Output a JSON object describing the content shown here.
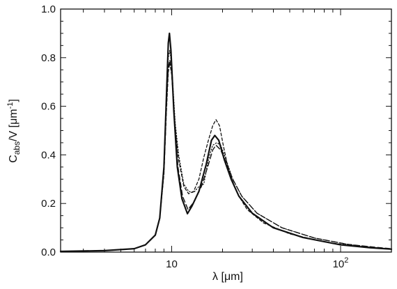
{
  "chart_data": {
    "type": "line",
    "title": "",
    "xlabel": "λ [μm]",
    "ylabel_main": "C",
    "ylabel_sub": "abs",
    "ylabel_tail": "/V  [μm",
    "ylabel_sup": "-1",
    "ylabel_close": "]",
    "xscale": "log",
    "xlim": [
      2.2,
      200
    ],
    "ylim": [
      0,
      1.0
    ],
    "grid": false,
    "x_ticks": [
      {
        "value": 10,
        "base": "10",
        "exp": ""
      },
      {
        "value": 100,
        "base": "10",
        "exp": "2"
      }
    ],
    "y_ticks": [
      {
        "value": 0.0,
        "label": "0.0"
      },
      {
        "value": 0.2,
        "label": "0.2"
      },
      {
        "value": 0.4,
        "label": "0.4"
      },
      {
        "value": 0.6,
        "label": "0.6"
      },
      {
        "value": 0.8,
        "label": "0.8"
      },
      {
        "value": 1.0,
        "label": "1.0"
      }
    ],
    "series": [
      {
        "style": "solid",
        "width": 2.2,
        "points": [
          [
            2.2,
            0.003
          ],
          [
            4,
            0.006
          ],
          [
            6,
            0.014
          ],
          [
            7,
            0.03
          ],
          [
            8,
            0.07
          ],
          [
            8.5,
            0.14
          ],
          [
            9,
            0.35
          ],
          [
            9.3,
            0.63
          ],
          [
            9.55,
            0.86
          ],
          [
            9.7,
            0.9
          ],
          [
            9.9,
            0.83
          ],
          [
            10.3,
            0.58
          ],
          [
            10.8,
            0.35
          ],
          [
            11.5,
            0.22
          ],
          [
            12.4,
            0.158
          ],
          [
            13.2,
            0.19
          ],
          [
            14.5,
            0.25
          ],
          [
            16,
            0.36
          ],
          [
            17.2,
            0.46
          ],
          [
            18,
            0.48
          ],
          [
            19,
            0.46
          ],
          [
            20.5,
            0.38
          ],
          [
            22.5,
            0.3
          ],
          [
            25,
            0.23
          ],
          [
            30,
            0.16
          ],
          [
            40,
            0.1
          ],
          [
            60,
            0.06
          ],
          [
            100,
            0.03
          ],
          [
            150,
            0.018
          ],
          [
            200,
            0.012
          ]
        ]
      },
      {
        "style": "dashed",
        "width": 1.4,
        "points": [
          [
            2.2,
            0.003
          ],
          [
            4,
            0.006
          ],
          [
            6,
            0.014
          ],
          [
            7,
            0.03
          ],
          [
            8,
            0.07
          ],
          [
            8.5,
            0.14
          ],
          [
            9,
            0.33
          ],
          [
            9.3,
            0.59
          ],
          [
            9.55,
            0.76
          ],
          [
            9.75,
            0.79
          ],
          [
            10,
            0.74
          ],
          [
            10.4,
            0.55
          ],
          [
            10.9,
            0.35
          ],
          [
            11.6,
            0.23
          ],
          [
            12.5,
            0.175
          ],
          [
            13.5,
            0.205
          ],
          [
            15,
            0.27
          ],
          [
            16.5,
            0.36
          ],
          [
            17.5,
            0.42
          ],
          [
            18.3,
            0.44
          ],
          [
            19.5,
            0.42
          ],
          [
            21,
            0.37
          ],
          [
            23,
            0.3
          ],
          [
            26,
            0.23
          ],
          [
            32,
            0.16
          ],
          [
            45,
            0.1
          ],
          [
            70,
            0.058
          ],
          [
            110,
            0.032
          ],
          [
            160,
            0.02
          ],
          [
            200,
            0.014
          ]
        ]
      },
      {
        "style": "dotted",
        "width": 1.2,
        "points": [
          [
            2.2,
            0.003
          ],
          [
            4,
            0.006
          ],
          [
            6,
            0.014
          ],
          [
            7,
            0.03
          ],
          [
            8,
            0.07
          ],
          [
            8.5,
            0.14
          ],
          [
            9,
            0.34
          ],
          [
            9.3,
            0.6
          ],
          [
            9.55,
            0.8
          ],
          [
            9.75,
            0.83
          ],
          [
            10,
            0.77
          ],
          [
            10.5,
            0.53
          ],
          [
            11,
            0.4
          ],
          [
            11.8,
            0.28
          ],
          [
            12.6,
            0.25
          ],
          [
            13.5,
            0.245
          ],
          [
            14.5,
            0.27
          ],
          [
            15.5,
            0.28
          ],
          [
            16.5,
            0.38
          ],
          [
            17.5,
            0.44
          ],
          [
            18.5,
            0.45
          ],
          [
            19.5,
            0.44
          ],
          [
            21,
            0.38
          ],
          [
            23,
            0.3
          ],
          [
            26,
            0.23
          ],
          [
            32,
            0.16
          ],
          [
            45,
            0.1
          ],
          [
            70,
            0.058
          ],
          [
            110,
            0.032
          ],
          [
            160,
            0.019
          ],
          [
            200,
            0.013
          ]
        ]
      },
      {
        "style": "short-dashed",
        "width": 1.3,
        "points": [
          [
            2.2,
            0.003
          ],
          [
            4,
            0.006
          ],
          [
            6,
            0.014
          ],
          [
            7,
            0.03
          ],
          [
            8,
            0.07
          ],
          [
            8.5,
            0.14
          ],
          [
            9,
            0.32
          ],
          [
            9.3,
            0.57
          ],
          [
            9.55,
            0.74
          ],
          [
            9.75,
            0.78
          ],
          [
            10,
            0.73
          ],
          [
            10.5,
            0.51
          ],
          [
            11,
            0.38
          ],
          [
            11.8,
            0.27
          ],
          [
            12.6,
            0.24
          ],
          [
            13.5,
            0.25
          ],
          [
            14.5,
            0.3
          ],
          [
            15.5,
            0.39
          ],
          [
            16.5,
            0.46
          ],
          [
            17.5,
            0.52
          ],
          [
            18.3,
            0.545
          ],
          [
            19.2,
            0.52
          ],
          [
            20.2,
            0.44
          ],
          [
            21.2,
            0.37
          ],
          [
            23,
            0.29
          ],
          [
            25,
            0.23
          ],
          [
            28,
            0.175
          ],
          [
            35,
            0.12
          ],
          [
            50,
            0.075
          ],
          [
            80,
            0.042
          ],
          [
            120,
            0.025
          ],
          [
            200,
            0.013
          ]
        ]
      }
    ]
  }
}
